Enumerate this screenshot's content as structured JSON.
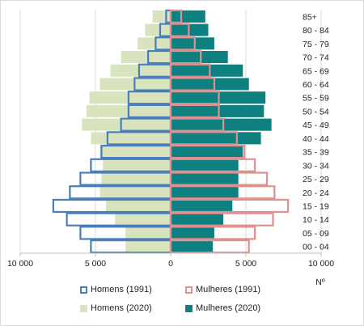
{
  "chart_data": {
    "type": "bar",
    "orientation": "horizontal",
    "layout": "population-pyramid",
    "categories": [
      "00 - 04",
      "05 - 09",
      "10 - 14",
      "15 - 19",
      "20 - 24",
      "25 - 29",
      "30 - 34",
      "35 - 39",
      "40 - 44",
      "45 - 49",
      "50 - 54",
      "55 - 59",
      "60 - 64",
      "65 - 69",
      "70 - 74",
      "75 - 79",
      "80 - 84",
      "85+"
    ],
    "series": [
      {
        "name": "Homens (1991)",
        "side": "left",
        "style": "outline",
        "color": "#4a7ebb",
        "values": [
          5300,
          6000,
          6900,
          7800,
          6700,
          6000,
          5300,
          4600,
          4200,
          3300,
          2800,
          2800,
          2400,
          2100,
          1500,
          1000,
          700,
          300
        ]
      },
      {
        "name": "Mulheres (1991)",
        "side": "right",
        "style": "outline",
        "color": "#e0908e",
        "values": [
          5200,
          5600,
          6800,
          7800,
          6900,
          6400,
          5600,
          4900,
          4400,
          3500,
          3200,
          3200,
          2900,
          2600,
          2000,
          1600,
          1200,
          700
        ]
      },
      {
        "name": "Homens (2020)",
        "side": "left",
        "style": "fill",
        "color": "#d7e4bd",
        "values": [
          3000,
          3000,
          3700,
          4300,
          4700,
          4600,
          4500,
          4700,
          5300,
          5900,
          5600,
          5400,
          4700,
          4000,
          3300,
          2200,
          1700,
          1200
        ]
      },
      {
        "name": "Mulheres (2020)",
        "side": "right",
        "style": "fill",
        "color": "#0e8080",
        "values": [
          2800,
          2900,
          3500,
          4100,
          4500,
          4500,
          4500,
          4800,
          6000,
          6700,
          6200,
          6300,
          5200,
          4800,
          3800,
          2900,
          2500,
          2300
        ]
      }
    ],
    "x_ticks": [
      "10 000",
      "5 000",
      "0",
      "5 000",
      "10 000"
    ],
    "x_tick_values": [
      -10000,
      -5000,
      0,
      5000,
      10000
    ],
    "xlim": [
      -10000,
      10000
    ],
    "xlabel": "Nº",
    "ylabel": "",
    "title": "",
    "grid": "vertical",
    "legend_position": "bottom"
  }
}
